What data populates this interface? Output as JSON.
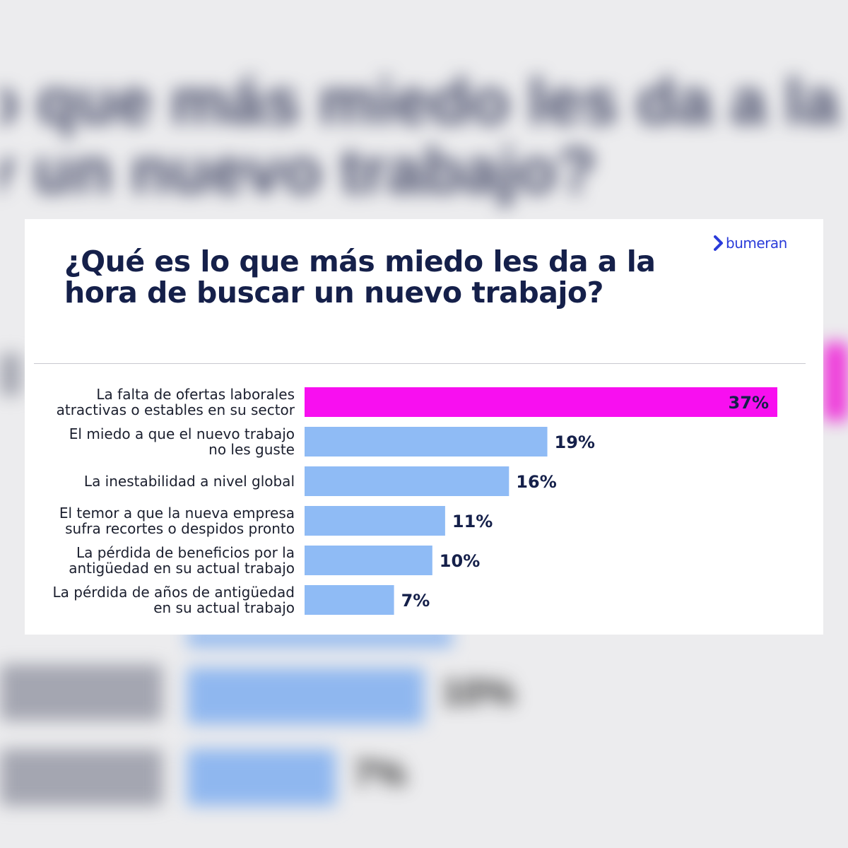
{
  "brand": {
    "name": "bumeran",
    "accent": "#2a3bd9"
  },
  "chart_data": {
    "type": "bar",
    "orientation": "horizontal",
    "title": "¿Qué es lo que más miedo les da a la hora de buscar un nuevo trabajo?",
    "categories": [
      [
        "La falta de ofertas laborales",
        "atractivas o estables en su sector"
      ],
      [
        "El miedo a que el nuevo trabajo",
        "no les guste"
      ],
      [
        "La inestabilidad a nivel global"
      ],
      [
        "El temor a que la nueva empresa",
        "sufra recortes o despidos pronto"
      ],
      [
        "La pérdida de beneficios por la",
        "antigüedad en su actual trabajo"
      ],
      [
        "La pérdida de años de antigüedad",
        "en su actual trabajo"
      ]
    ],
    "values": [
      37,
      19,
      16,
      11,
      10,
      7
    ],
    "value_labels": [
      "37%",
      "19%",
      "16%",
      "11%",
      "10%",
      "7%"
    ],
    "unit": "%",
    "xlim": [
      0,
      37
    ],
    "colors": {
      "highlight": "#f80ff0",
      "default": "#8fbbf5"
    },
    "highlight_index": 0,
    "grid": false,
    "legend": "none"
  }
}
